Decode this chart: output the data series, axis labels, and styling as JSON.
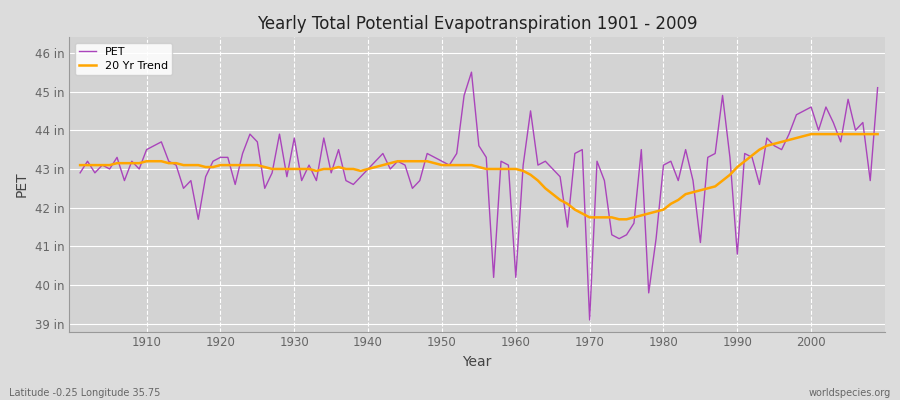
{
  "title": "Yearly Total Potential Evapotranspiration 1901 - 2009",
  "xlabel": "Year",
  "ylabel": "PET",
  "subtitle": "Latitude -0.25 Longitude 35.75",
  "watermark": "worldspecies.org",
  "pet_color": "#AA44BB",
  "trend_color": "#FFA500",
  "bg_color": "#DCDCDC",
  "plot_bg_color": "#D3D3D3",
  "ylim": [
    38.8,
    46.4
  ],
  "yticks": [
    39,
    40,
    41,
    42,
    43,
    44,
    45,
    46
  ],
  "ytick_labels": [
    "39 in",
    "40 in",
    "41 in",
    "42 in",
    "43 in",
    "44 in",
    "45 in",
    "46 in"
  ],
  "xlim": [
    1899.5,
    2010
  ],
  "xticks": [
    1910,
    1920,
    1930,
    1940,
    1950,
    1960,
    1970,
    1980,
    1990,
    2000
  ],
  "years": [
    1901,
    1902,
    1903,
    1904,
    1905,
    1906,
    1907,
    1908,
    1909,
    1910,
    1911,
    1912,
    1913,
    1914,
    1915,
    1916,
    1917,
    1918,
    1919,
    1920,
    1921,
    1922,
    1923,
    1924,
    1925,
    1926,
    1927,
    1928,
    1929,
    1930,
    1931,
    1932,
    1933,
    1934,
    1935,
    1936,
    1937,
    1938,
    1939,
    1940,
    1941,
    1942,
    1943,
    1944,
    1945,
    1946,
    1947,
    1948,
    1949,
    1950,
    1951,
    1952,
    1953,
    1954,
    1955,
    1956,
    1957,
    1958,
    1959,
    1960,
    1961,
    1962,
    1963,
    1964,
    1965,
    1966,
    1967,
    1968,
    1969,
    1970,
    1971,
    1972,
    1973,
    1974,
    1975,
    1976,
    1977,
    1978,
    1979,
    1980,
    1981,
    1982,
    1983,
    1984,
    1985,
    1986,
    1987,
    1988,
    1989,
    1990,
    1991,
    1992,
    1993,
    1994,
    1995,
    1996,
    1997,
    1998,
    1999,
    2000,
    2001,
    2002,
    2003,
    2004,
    2005,
    2006,
    2007,
    2008,
    2009
  ],
  "pet_values": [
    42.9,
    43.2,
    42.9,
    43.1,
    43.0,
    43.3,
    42.7,
    43.2,
    43.0,
    43.5,
    43.6,
    43.7,
    43.2,
    43.1,
    42.5,
    42.7,
    41.7,
    42.8,
    43.2,
    43.3,
    43.3,
    42.6,
    43.4,
    43.9,
    43.7,
    42.5,
    42.9,
    43.9,
    42.8,
    43.8,
    42.7,
    43.1,
    42.7,
    43.8,
    42.9,
    43.5,
    42.7,
    42.6,
    42.8,
    43.0,
    43.2,
    43.4,
    43.0,
    43.2,
    43.1,
    42.5,
    42.7,
    43.4,
    43.3,
    43.2,
    43.1,
    43.4,
    44.9,
    45.5,
    43.6,
    43.3,
    40.2,
    43.2,
    43.1,
    40.2,
    43.1,
    44.5,
    43.1,
    43.2,
    43.0,
    42.8,
    41.5,
    43.4,
    43.5,
    39.1,
    43.2,
    42.7,
    41.3,
    41.2,
    41.3,
    41.6,
    43.5,
    39.8,
    41.2,
    43.1,
    43.2,
    42.7,
    43.5,
    42.7,
    41.1,
    43.3,
    43.4,
    44.9,
    43.3,
    40.8,
    43.4,
    43.3,
    42.6,
    43.8,
    43.6,
    43.5,
    43.9,
    44.4,
    44.5,
    44.6,
    44.0,
    44.6,
    44.2,
    43.7,
    44.8,
    44.0,
    44.2,
    42.7,
    45.1
  ],
  "trend_values": [
    43.1,
    43.1,
    43.1,
    43.1,
    43.1,
    43.15,
    43.15,
    43.15,
    43.15,
    43.2,
    43.2,
    43.2,
    43.15,
    43.15,
    43.1,
    43.1,
    43.1,
    43.05,
    43.05,
    43.1,
    43.1,
    43.1,
    43.1,
    43.1,
    43.1,
    43.05,
    43.0,
    43.0,
    43.0,
    43.0,
    43.0,
    43.0,
    42.95,
    43.0,
    43.0,
    43.05,
    43.0,
    43.0,
    42.95,
    43.0,
    43.05,
    43.1,
    43.15,
    43.2,
    43.2,
    43.2,
    43.2,
    43.2,
    43.15,
    43.1,
    43.1,
    43.1,
    43.1,
    43.1,
    43.05,
    43.0,
    43.0,
    43.0,
    43.0,
    43.0,
    42.95,
    42.85,
    42.7,
    42.5,
    42.35,
    42.2,
    42.1,
    41.95,
    41.85,
    41.75,
    41.75,
    41.75,
    41.75,
    41.7,
    41.7,
    41.75,
    41.8,
    41.85,
    41.9,
    41.95,
    42.1,
    42.2,
    42.35,
    42.4,
    42.45,
    42.5,
    42.55,
    42.7,
    42.85,
    43.05,
    43.2,
    43.35,
    43.5,
    43.6,
    43.65,
    43.7,
    43.75,
    43.8,
    43.85,
    43.9,
    43.9,
    43.9,
    43.9,
    43.9,
    43.9,
    43.9,
    43.9,
    43.9,
    43.9
  ]
}
